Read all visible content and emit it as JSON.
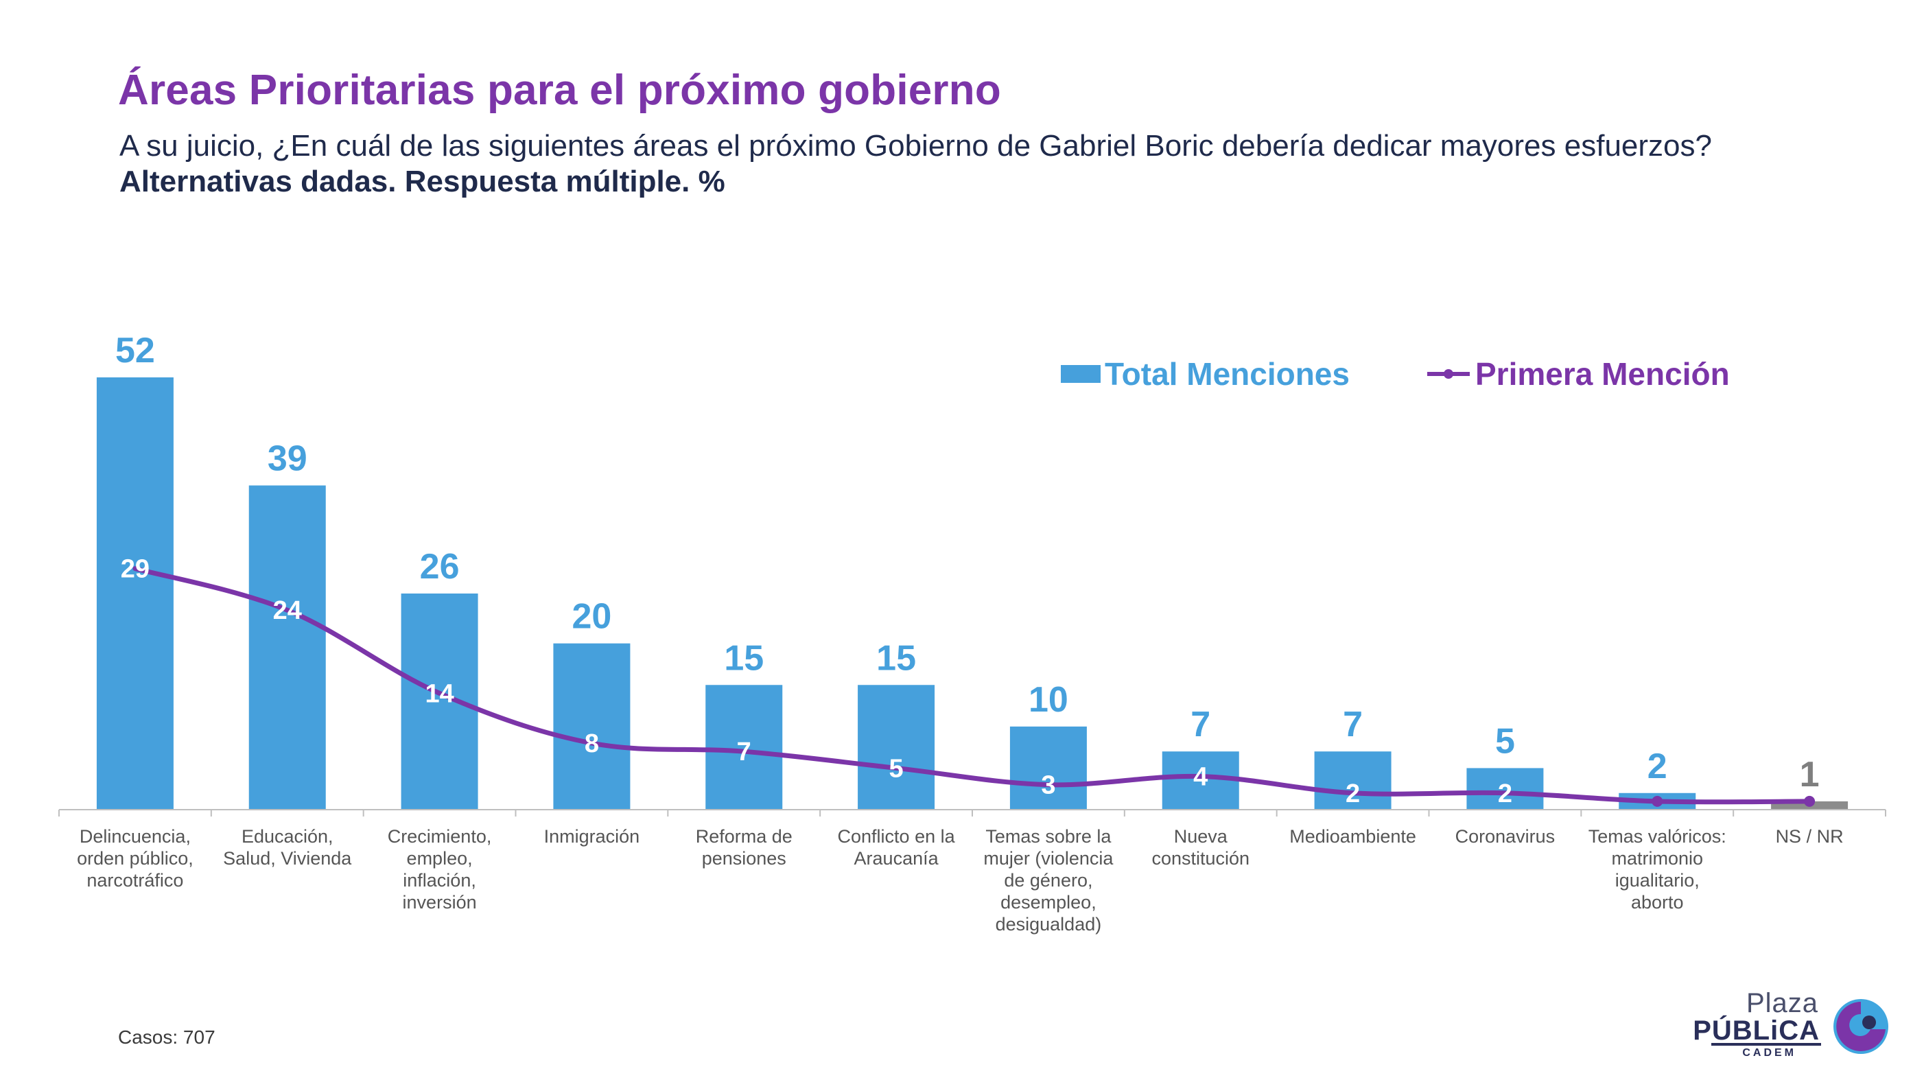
{
  "header": {
    "title": "Áreas Prioritarias para el próximo gobierno",
    "subtitle": "A su juicio, ¿En cuál de las siguientes áreas el próximo Gobierno de Gabriel Boric debería dedicar mayores esfuerzos?",
    "note": "Alternativas dadas. Respuesta múltiple. %"
  },
  "legend": {
    "bar_label": "Total Menciones",
    "line_label": "Primera Mención"
  },
  "footer": {
    "cases": "Casos: 707"
  },
  "logo": {
    "plaza": "Plaza",
    "publica": "PÚBLiCA",
    "cadem": "CADEM"
  },
  "colors": {
    "bar": "#46a0dc",
    "bar_nsnr": "#8c8c8c",
    "line": "#7b35a8",
    "title": "#7b35a8",
    "text_dark": "#1f2a4b",
    "axis_label": "#555555",
    "nsnr_label": "#7f7f7f"
  },
  "chart_data": {
    "type": "bar",
    "categories": [
      [
        "Delincuencia,",
        "orden público,",
        "narcotráfico"
      ],
      [
        "Educación,",
        "Salud, Vivienda"
      ],
      [
        "Crecimiento,",
        "empleo,",
        "inflación,",
        "inversión"
      ],
      [
        "Inmigración"
      ],
      [
        "Reforma de",
        "pensiones"
      ],
      [
        "Conflicto en la",
        "Araucanía"
      ],
      [
        "Temas sobre la",
        "mujer (violencia",
        "de género,",
        "desempleo,",
        "desigualdad)"
      ],
      [
        "Nueva",
        "constitución"
      ],
      [
        "Medioambiente"
      ],
      [
        "Coronavirus"
      ],
      [
        "Temas valóricos:",
        "matrimonio",
        "igualitario,",
        "aborto"
      ],
      [
        "NS / NR"
      ]
    ],
    "series": [
      {
        "name": "Total Menciones",
        "type": "bar",
        "values": [
          52,
          39,
          26,
          20,
          15,
          15,
          10,
          7,
          7,
          5,
          2,
          1
        ]
      },
      {
        "name": "Primera Mención",
        "type": "line",
        "values": [
          29,
          24,
          14,
          8,
          7,
          5,
          3,
          4,
          2,
          2,
          1,
          1
        ],
        "labels": [
          "29",
          "24",
          "14",
          "8",
          "7",
          "5",
          "3",
          "4",
          "2",
          "2",
          "",
          ""
        ]
      }
    ],
    "ylim": [
      0,
      55
    ],
    "legend_position": "top-right",
    "grid": false
  }
}
